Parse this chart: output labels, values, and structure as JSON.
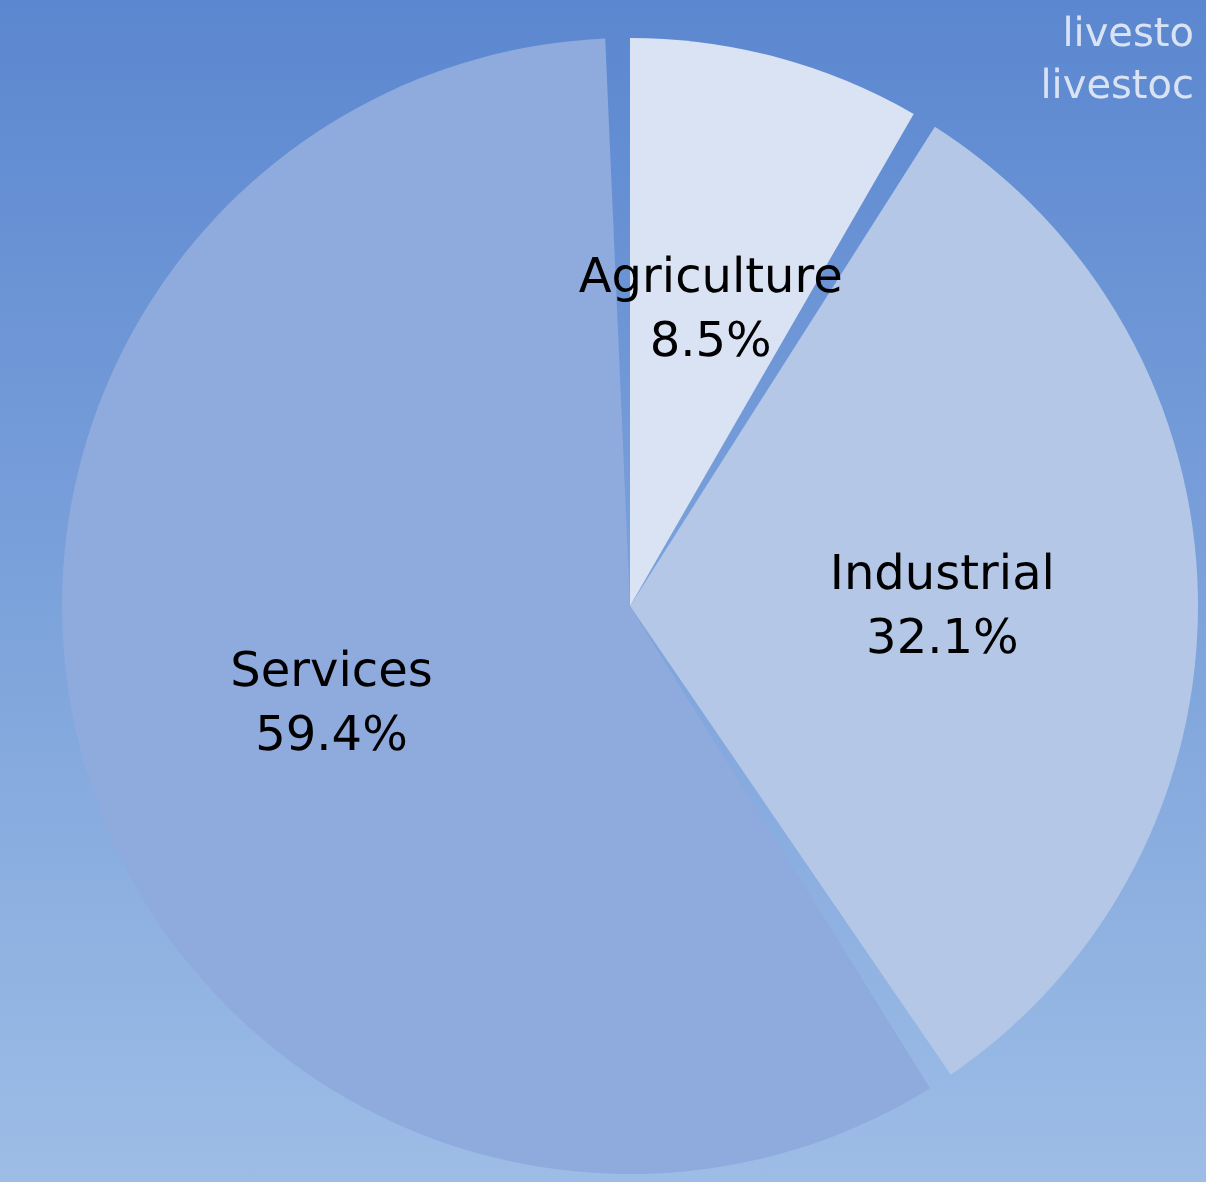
{
  "chart_data": {
    "type": "pie",
    "categories": [
      "Agriculture",
      "Industrial",
      "Services"
    ],
    "values": [
      8.5,
      32.1,
      59.4
    ],
    "colors": [
      "#dae3f3",
      "#b4c7e7",
      "#8faadc"
    ],
    "value_labels": [
      "8.5%",
      "32.1%",
      "59.4%"
    ],
    "annotations": [
      "livesto",
      "livestoc"
    ]
  }
}
